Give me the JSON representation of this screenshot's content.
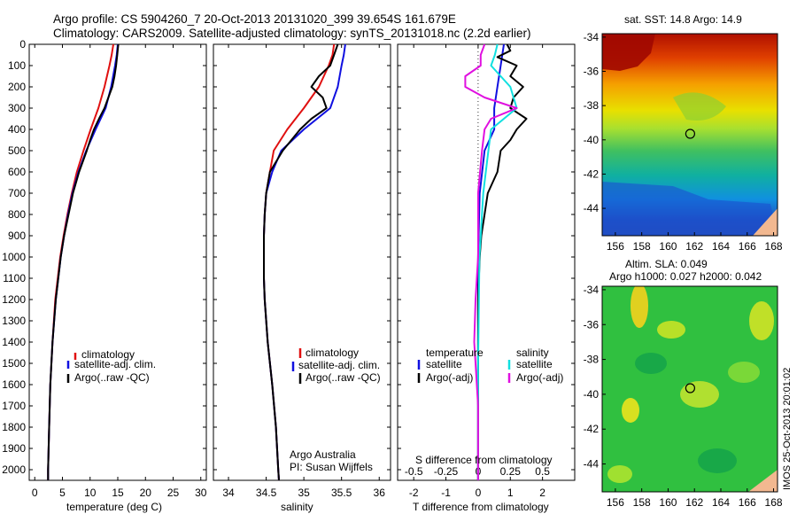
{
  "title_line1": "Argo profile: CS 5904260_7 20-Oct-2013 20131020_399 39.654S 161.679E",
  "title_line2": "Climatology: CARS2009. Satellite-adjusted climatology: synTS_20131018.nc (2.2d earlier)",
  "depth_ticks": [
    "0",
    "100",
    "200",
    "300",
    "400",
    "500",
    "600",
    "700",
    "800",
    "900",
    "1000",
    "1100",
    "1200",
    "1300",
    "1400",
    "1500",
    "1600",
    "1700",
    "1800",
    "1900",
    "2000"
  ],
  "colors": {
    "climatology": "#e01010",
    "satellite": "#1010e0",
    "argo": "#000000",
    "sat_s": "#10e0e0",
    "argo_s": "#e010e0"
  },
  "credit": {
    "line1": "Argo Australia",
    "line2": "PI: Susan Wijffels"
  },
  "timestamp": "IMOS 25-Oct-2013 20:01:02",
  "chart_data": [
    {
      "type": "line",
      "name": "temperature",
      "xlabel": "temperature (deg C)",
      "ylabel": "depth (m)",
      "xlim": [
        -1,
        31
      ],
      "ylim": [
        2050,
        0
      ],
      "xticks": [
        0,
        5,
        10,
        15,
        20,
        25,
        30
      ],
      "xtick_labels": [
        "0",
        "5",
        "10",
        "15",
        "20",
        "25",
        "30"
      ],
      "legend": [
        "climatology",
        "satellite-adj. clim.",
        "Argo(..raw -QC)"
      ],
      "series": [
        {
          "name": "climatology",
          "depth": [
            0,
            50,
            100,
            200,
            300,
            400,
            500,
            600,
            700,
            800,
            900,
            1000,
            1200,
            1400,
            1600,
            1800,
            2000,
            2050
          ],
          "values": [
            14.2,
            13.9,
            13.5,
            12.6,
            11.5,
            10.1,
            8.8,
            7.6,
            6.7,
            5.9,
            5.2,
            4.6,
            3.7,
            3.2,
            2.8,
            2.6,
            2.4,
            2.4
          ]
        },
        {
          "name": "satellite-adj. clim.",
          "depth": [
            0,
            50,
            100,
            200,
            300,
            400,
            500,
            600,
            700,
            800,
            900,
            1000,
            1200,
            1400,
            1600,
            1800,
            2000,
            2050
          ],
          "values": [
            15.0,
            14.8,
            14.5,
            13.8,
            12.8,
            11.0,
            9.3,
            7.9,
            6.8,
            6.0,
            5.3,
            4.7,
            3.8,
            3.2,
            2.8,
            2.6,
            2.4,
            2.4
          ]
        },
        {
          "name": "Argo(..raw -QC)",
          "depth": [
            0,
            50,
            100,
            150,
            200,
            250,
            300,
            350,
            400,
            450,
            500,
            600,
            700,
            800,
            900,
            1000,
            1200,
            1400,
            1600,
            1800,
            2000,
            2050
          ],
          "values": [
            15.1,
            14.9,
            14.7,
            14.4,
            14.0,
            13.3,
            12.6,
            11.6,
            10.7,
            10.0,
            9.4,
            8.0,
            6.9,
            6.1,
            5.3,
            4.7,
            3.8,
            3.2,
            2.8,
            2.6,
            2.4,
            2.4
          ]
        }
      ]
    },
    {
      "type": "line",
      "name": "salinity",
      "xlabel": "salinity",
      "ylabel": "depth (m)",
      "xlim": [
        33.8,
        36.15
      ],
      "ylim": [
        2050,
        0
      ],
      "xticks": [
        34,
        34.5,
        35,
        35.5,
        36
      ],
      "xtick_labels": [
        "34",
        "34.5",
        "35",
        "35.5",
        "36"
      ],
      "legend": [
        "climatology",
        "satellite-adj. clim.",
        "Argo(..raw -QC)"
      ],
      "series": [
        {
          "name": "climatology",
          "depth": [
            0,
            50,
            100,
            200,
            300,
            400,
            500,
            600,
            700,
            800,
            900,
            1000,
            1100,
            1200,
            1400,
            1600,
            1800,
            2000,
            2050
          ],
          "values": [
            35.4,
            35.38,
            35.33,
            35.2,
            35.0,
            34.78,
            34.6,
            34.55,
            34.5,
            34.48,
            34.47,
            34.47,
            34.47,
            34.48,
            34.52,
            34.58,
            34.63,
            34.66,
            34.67
          ]
        },
        {
          "name": "satellite-adj. clim.",
          "depth": [
            0,
            50,
            100,
            200,
            300,
            400,
            500,
            600,
            700,
            800,
            900,
            1000,
            1100,
            1200,
            1400,
            1600,
            1800,
            2000,
            2050
          ],
          "values": [
            35.55,
            35.53,
            35.5,
            35.45,
            35.35,
            35.0,
            34.7,
            34.58,
            34.5,
            34.48,
            34.47,
            34.47,
            34.47,
            34.48,
            34.52,
            34.58,
            34.63,
            34.66,
            34.67
          ]
        },
        {
          "name": "Argo(..raw -QC)",
          "depth": [
            0,
            50,
            100,
            150,
            200,
            250,
            300,
            350,
            400,
            500,
            600,
            700,
            800,
            900,
            1000,
            1100,
            1200,
            1400,
            1600,
            1800,
            2000,
            2050
          ],
          "values": [
            35.45,
            35.4,
            35.35,
            35.2,
            35.1,
            35.25,
            35.3,
            35.1,
            34.95,
            34.72,
            34.55,
            34.5,
            34.48,
            34.47,
            34.47,
            34.47,
            34.48,
            34.52,
            34.58,
            34.63,
            34.66,
            34.67
          ]
        }
      ]
    },
    {
      "type": "line",
      "name": "difference from climatology",
      "xlabel": "T difference from climatology",
      "xlabel_top": "S difference from climatology",
      "ylabel": "depth (m)",
      "xlim": [
        -2.5,
        3
      ],
      "ylim": [
        2050,
        0
      ],
      "xticks": [
        -2,
        -1,
        0,
        1,
        2
      ],
      "xtick_labels": [
        "-2",
        "-1",
        "0",
        "1",
        "2"
      ],
      "xticks_s": [
        -0.5,
        -0.25,
        0,
        0.25,
        0.5
      ],
      "xtick_labels_s": [
        "-0.5",
        "-0.25",
        "0",
        "0.25",
        "0.5"
      ],
      "legend_headers": [
        "temperature",
        "salinity"
      ],
      "legend": [
        "satellite",
        "Argo(-adj)",
        "satellite",
        "Argo(-adj)"
      ],
      "series": [
        {
          "name": "temperature satellite",
          "depth": [
            0,
            50,
            100,
            200,
            300,
            400,
            500,
            700,
            1000,
            1500,
            2050
          ],
          "values": [
            0.8,
            0.75,
            0.7,
            0.6,
            0.5,
            0.5,
            0.2,
            0.05,
            0.0,
            0.0,
            0.0
          ]
        },
        {
          "name": "temperature Argo(-adj)",
          "depth": [
            0,
            30,
            60,
            100,
            150,
            200,
            250,
            300,
            350,
            400,
            450,
            500,
            600,
            700,
            800,
            900,
            1000,
            1200,
            1500,
            2050
          ],
          "values": [
            0.9,
            1.0,
            0.6,
            1.2,
            1.0,
            1.4,
            1.1,
            1.0,
            1.5,
            1.2,
            1.0,
            0.7,
            0.6,
            0.3,
            0.2,
            0.1,
            0.05,
            0.0,
            0.0,
            0.0
          ]
        },
        {
          "name": "salinity satellite",
          "depth": [
            0,
            50,
            100,
            200,
            300,
            400,
            500,
            600,
            700,
            1000,
            1500,
            2050
          ],
          "values": [
            0.15,
            0.13,
            0.1,
            0.25,
            0.3,
            0.1,
            0.08,
            0.06,
            0.04,
            0.01,
            0.0,
            0.0
          ]
        },
        {
          "name": "salinity Argo(-adj)",
          "depth": [
            0,
            50,
            100,
            150,
            200,
            250,
            300,
            350,
            400,
            500,
            700,
            1000,
            1200,
            1400,
            1500,
            1700,
            2050
          ],
          "values": [
            0.05,
            0.02,
            0.02,
            -0.1,
            -0.1,
            0.05,
            0.3,
            0.1,
            0.05,
            0.03,
            0.0,
            0.0,
            -0.02,
            -0.03,
            -0.02,
            0.0,
            0.0
          ]
        }
      ]
    },
    {
      "type": "heatmap",
      "name": "sst map",
      "title": "sat. SST: 14.8 Argo: 14.9",
      "xlim": [
        155,
        168.3
      ],
      "ylim": [
        -45.6,
        -33.8
      ],
      "xticks": [
        156,
        158,
        160,
        162,
        164,
        166,
        168
      ],
      "yticks": [
        -34,
        -36,
        -38,
        -40,
        -42,
        -44
      ],
      "argo_position": [
        161.68,
        -39.65
      ]
    },
    {
      "type": "heatmap",
      "name": "sla map",
      "title_line1": "Altim. SLA: 0.049",
      "title_line2": "Argo h1000: 0.027 h2000: 0.042",
      "xlim": [
        155,
        168.3
      ],
      "ylim": [
        -45.6,
        -33.8
      ],
      "xticks": [
        156,
        158,
        160,
        162,
        164,
        166,
        168
      ],
      "yticks": [
        -34,
        -36,
        -38,
        -40,
        -42,
        -44
      ],
      "argo_position": [
        161.68,
        -39.65
      ]
    }
  ]
}
